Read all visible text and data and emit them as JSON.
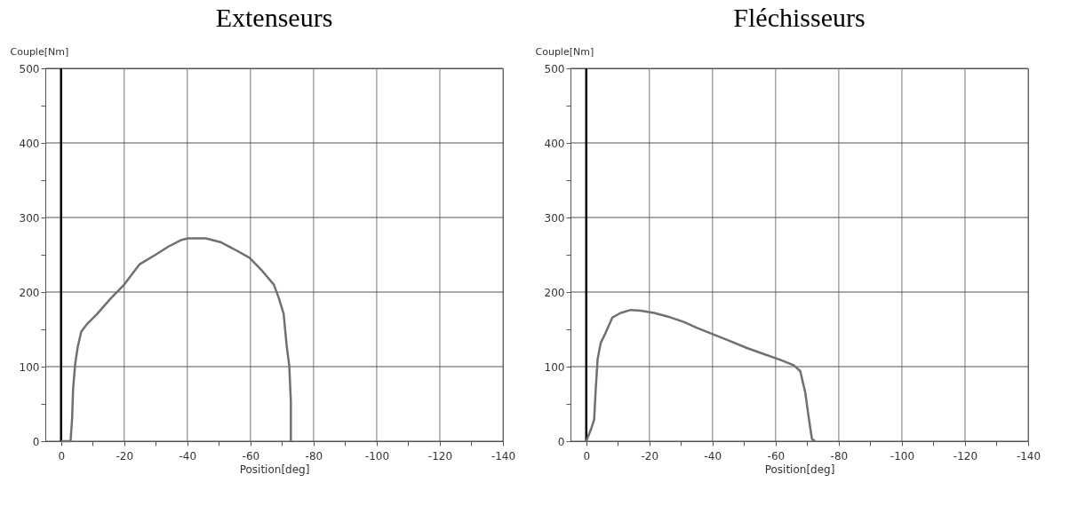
{
  "chart_data": [
    {
      "type": "line",
      "title": "Extenseurs",
      "xlabel": "Position[deg]",
      "ylabel": "Couple[Nm]",
      "xlim": [
        5,
        -140
      ],
      "ylim": [
        0,
        500
      ],
      "xticks": [
        0,
        {
          "value": -10,
          "label": null
        },
        -20,
        {
          "value": -30,
          "label": null
        },
        -40,
        {
          "value": -50,
          "label": null
        },
        -60,
        {
          "value": -70,
          "label": null
        },
        -80,
        {
          "value": -90,
          "label": null
        },
        -100,
        {
          "value": -110,
          "label": null
        },
        -120,
        {
          "value": -130,
          "label": null
        },
        -140
      ],
      "yticks": [
        0,
        {
          "value": 50,
          "label": null
        },
        100,
        {
          "value": 150,
          "label": null
        },
        200,
        {
          "value": 250,
          "label": null
        },
        300,
        {
          "value": 350,
          "label": null
        },
        400,
        {
          "value": 450,
          "label": null
        },
        500
      ],
      "grid": true,
      "marker": "none",
      "line_style": "solid",
      "ref_lines": [
        {
          "axis": "x",
          "value": 0,
          "color": "#000000"
        }
      ],
      "series": [
        {
          "color": "#707070",
          "x": [
            0,
            -3,
            -3.5,
            -3.8,
            -4.5,
            -5.3,
            -6.4,
            -8.4,
            -11.5,
            -15.6,
            -20,
            -24.8,
            -29.9,
            -34,
            -38.2,
            -40.2,
            -45.8,
            -50.5,
            -54.6,
            -59.7,
            -63.8,
            -67.4,
            -68.9,
            -70.5,
            -71.5,
            -72.3,
            -72.8,
            -72.8
          ],
          "values": [
            0,
            0,
            31,
            70,
            105,
            127,
            147,
            158,
            171,
            191,
            210,
            237,
            250,
            261,
            270,
            272,
            272,
            267,
            258,
            246,
            228,
            210,
            193,
            171,
            127,
            101,
            53,
            0
          ]
        }
      ]
    },
    {
      "type": "line",
      "title": "Fléchisseurs",
      "xlabel": "Position[deg]",
      "ylabel": "Couple[Nm]",
      "xlim": [
        5,
        -140
      ],
      "ylim": [
        0,
        500
      ],
      "xticks": [
        0,
        {
          "value": -10,
          "label": null
        },
        -20,
        {
          "value": -30,
          "label": null
        },
        -40,
        {
          "value": -50,
          "label": null
        },
        -60,
        {
          "value": -70,
          "label": null
        },
        -80,
        {
          "value": -90,
          "label": null
        },
        -100,
        {
          "value": -110,
          "label": null
        },
        -120,
        {
          "value": -130,
          "label": null
        },
        -140
      ],
      "yticks": [
        0,
        {
          "value": 50,
          "label": null
        },
        100,
        {
          "value": 150,
          "label": null
        },
        200,
        {
          "value": 250,
          "label": null
        },
        300,
        {
          "value": 350,
          "label": null
        },
        400,
        {
          "value": 450,
          "label": null
        },
        500
      ],
      "grid": true,
      "marker": "none",
      "line_style": "solid",
      "ref_lines": [
        {
          "axis": "x",
          "value": 0,
          "color": "#000000"
        }
      ],
      "series": [
        {
          "color": "#707070",
          "x": [
            0,
            -1.5,
            -2.5,
            -3,
            -3.6,
            -4.6,
            -6.2,
            -8.3,
            -10.9,
            -14.1,
            -17.3,
            -21.5,
            -26.7,
            -30.9,
            -35.1,
            -40.4,
            -45.7,
            -50.9,
            -56.2,
            -61.5,
            -65.7,
            -67.8,
            -69.4,
            -70.4,
            -71.5,
            -72.5
          ],
          "values": [
            0,
            16,
            29,
            70,
            110,
            132,
            146,
            166,
            172,
            176,
            175,
            172,
            166,
            160,
            152,
            143,
            134,
            125,
            117,
            109,
            102,
            94,
            65,
            34,
            3,
            0
          ]
        }
      ]
    }
  ]
}
